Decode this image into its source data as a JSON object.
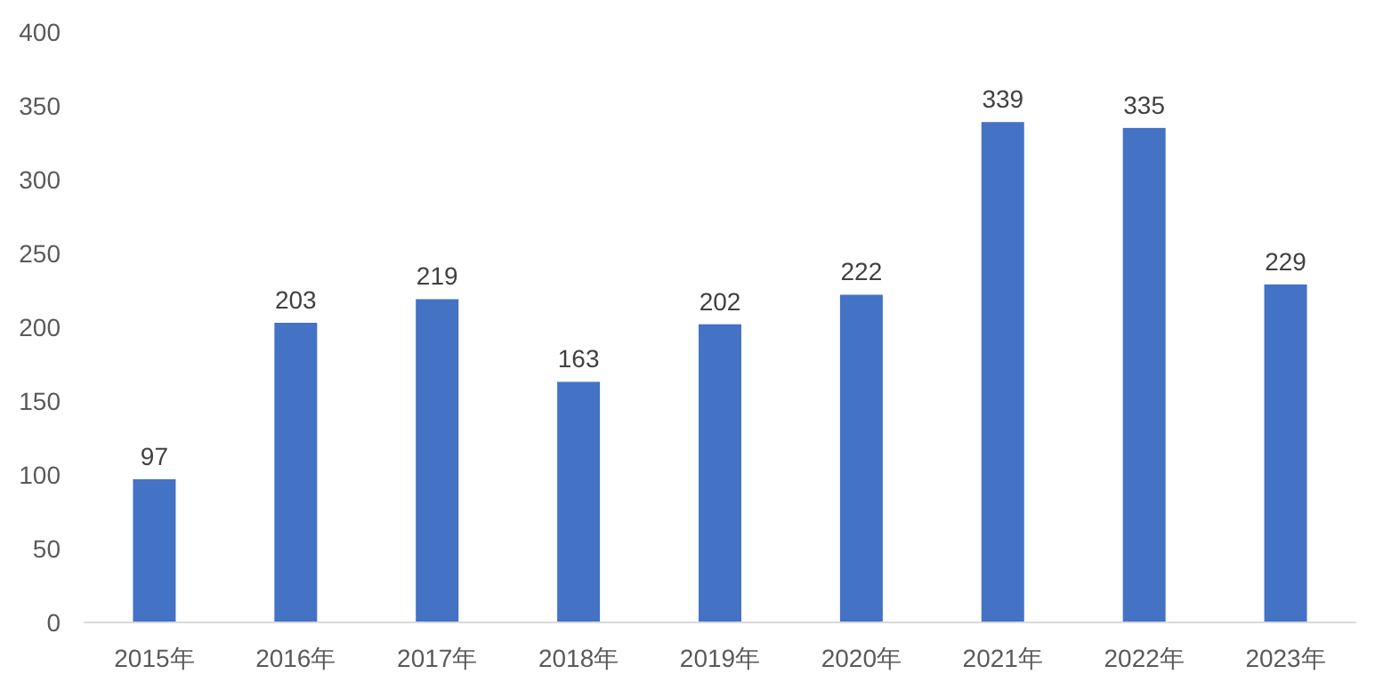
{
  "chart_data": {
    "type": "bar",
    "categories": [
      "2015年",
      "2016年",
      "2017年",
      "2018年",
      "2019年",
      "2020年",
      "2021年",
      "2022年",
      "2023年"
    ],
    "values": [
      97,
      203,
      219,
      163,
      202,
      222,
      339,
      335,
      229
    ],
    "color": "#4472c4",
    "ylim": [
      0,
      400
    ],
    "yticks": [
      0,
      50,
      100,
      150,
      200,
      250,
      300,
      350,
      400
    ],
    "grid": false,
    "data_labels": true
  }
}
